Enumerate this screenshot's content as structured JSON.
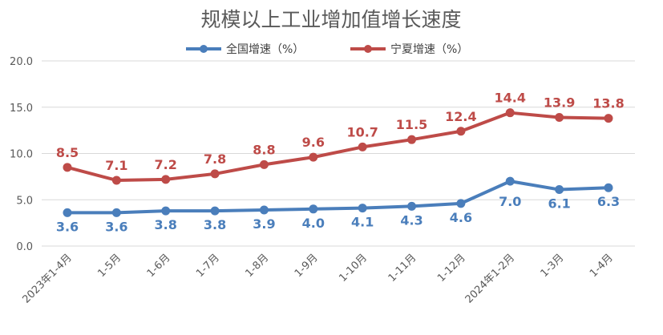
{
  "chart_data": {
    "type": "line",
    "title": "规模以上工业增加值增长速度",
    "categories": [
      "2023年1-4月",
      "1-5月",
      "1-6月",
      "1-7月",
      "1-8月",
      "1-9月",
      "1-10月",
      "1-11月",
      "1-12月",
      "2024年1-2月",
      "1-3月",
      "1-4月"
    ],
    "series": [
      {
        "name": "全国增速（%）",
        "color": "#4a7ebb",
        "values": [
          3.6,
          3.6,
          3.8,
          3.8,
          3.9,
          4.0,
          4.1,
          4.3,
          4.6,
          7.0,
          6.1,
          6.3
        ]
      },
      {
        "name": "宁夏增速（%）",
        "color": "#be4b48",
        "values": [
          8.5,
          7.1,
          7.2,
          7.8,
          8.8,
          9.6,
          10.7,
          11.5,
          12.4,
          14.4,
          13.9,
          13.8
        ]
      }
    ],
    "yticks": [
      "0.0",
      "5.0",
      "10.0",
      "15.0",
      "20.0"
    ],
    "ylim": [
      0,
      20
    ],
    "grid": true,
    "legend_position": "top-center"
  }
}
